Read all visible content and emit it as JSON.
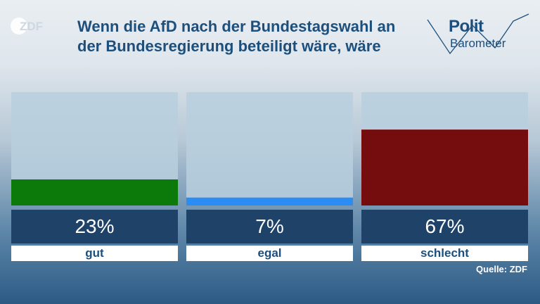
{
  "header": {
    "logo_text": "ZDF",
    "title": "Wenn die AfD nach der Bundestagswahl an der Bundesregierung beteiligt wäre, wäre",
    "brand_top": "Polit",
    "brand_bottom": "Barometer"
  },
  "chart_data": {
    "type": "bar",
    "categories": [
      "gut",
      "egal",
      "schlecht"
    ],
    "values": [
      23,
      7,
      67
    ],
    "value_labels": [
      "23%",
      "7%",
      "67%"
    ],
    "colors": [
      "#0b7a0b",
      "#2b8cf3",
      "#750d0f"
    ],
    "ylim": [
      0,
      100
    ],
    "grid": false
  },
  "footer": {
    "source": "Quelle: ZDF"
  }
}
